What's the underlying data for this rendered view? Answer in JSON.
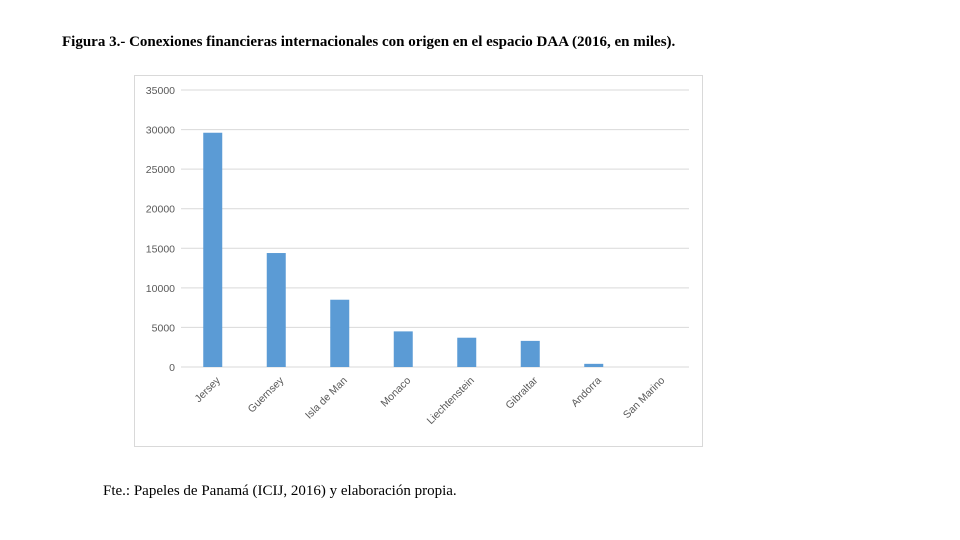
{
  "figure": {
    "title": "Figura 3.- Conexiones financieras internacionales con origen en el espacio DAA (2016, en miles).",
    "source": "Fte.: Papeles de Panamá (ICIJ, 2016) y elaboración propia."
  },
  "chart_data": {
    "type": "bar",
    "categories": [
      "Jersey",
      "Guernsey",
      "Isla de Man",
      "Monaco",
      "Liechtenstein",
      "Gibraltar",
      "Andorra",
      "San Marino"
    ],
    "values": [
      29600,
      14400,
      8500,
      4500,
      3700,
      3300,
      400,
      0
    ],
    "yticks": [
      "0",
      "5000",
      "10000",
      "15000",
      "20000",
      "25000",
      "30000",
      "35000"
    ],
    "ylim": [
      0,
      35000
    ],
    "grid": true,
    "bar_color": "#5b9bd5",
    "grid_color": "#d9d9d9"
  }
}
